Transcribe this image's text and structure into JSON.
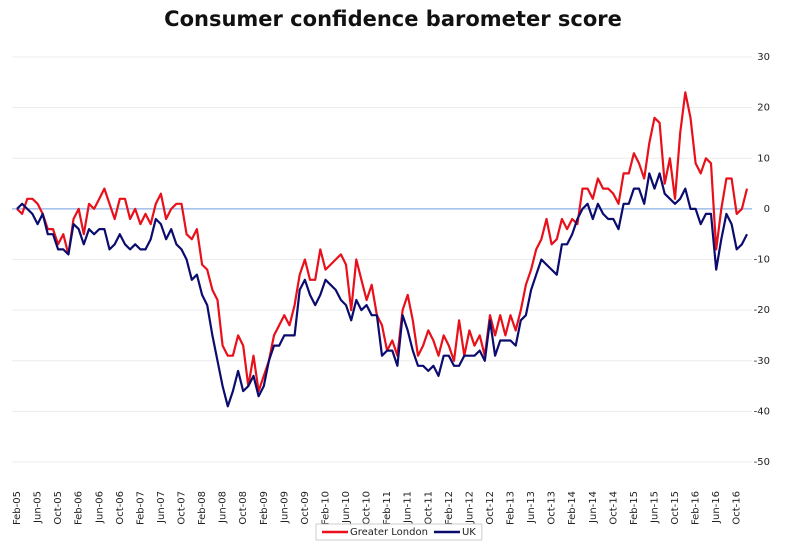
{
  "chart_data": {
    "type": "line",
    "title": "Consumer confidence barometer score",
    "categories": [
      "Feb-05",
      null,
      null,
      null,
      "Jun-05",
      null,
      null,
      null,
      "Oct-05",
      null,
      null,
      null,
      "Feb-06",
      null,
      null,
      null,
      "Jun-06",
      null,
      null,
      null,
      "Oct-06",
      null,
      null,
      null,
      "Feb-07",
      null,
      null,
      null,
      "Jun-07",
      null,
      null,
      null,
      "Oct-07",
      null,
      null,
      null,
      "Feb-08",
      null,
      null,
      null,
      "Jun-08",
      null,
      null,
      null,
      "Oct-08",
      null,
      null,
      null,
      "Feb-09",
      null,
      null,
      null,
      "Jun-09",
      null,
      null,
      null,
      "Oct-09",
      null,
      null,
      null,
      "Feb-10",
      null,
      null,
      null,
      "Jun-10",
      null,
      null,
      null,
      "Oct-10",
      null,
      null,
      null,
      "Feb-11",
      null,
      null,
      null,
      "Jun-11",
      null,
      null,
      null,
      "Oct-11",
      null,
      null,
      null,
      "Feb-12",
      null,
      null,
      null,
      "Jun-12",
      null,
      null,
      null,
      "Oct-12",
      null,
      null,
      null,
      "Feb-13",
      null,
      null,
      null,
      "Jun-13",
      null,
      null,
      null,
      "Oct-13",
      null,
      null,
      null,
      "Feb-14",
      null,
      null,
      null,
      "Jun-14",
      null,
      null,
      null,
      "Oct-14",
      null,
      null,
      null,
      "Feb-15",
      null,
      null,
      null,
      "Jun-15",
      null,
      null,
      null,
      "Oct-15",
      null,
      null,
      null,
      "Feb-16",
      null,
      null,
      null,
      "Jun-16",
      null,
      null,
      null,
      "Oct-16",
      null,
      null
    ],
    "series": [
      {
        "name": "Greater London",
        "color": "#e8101a",
        "values": [
          0,
          -1,
          2,
          2,
          1,
          -1,
          -4,
          -4,
          -7,
          -5,
          -9,
          -2,
          0,
          -5,
          1,
          0,
          2,
          4,
          1,
          -2,
          2,
          2,
          -2,
          0,
          -3,
          -1,
          -3,
          1,
          3,
          -2,
          0,
          1,
          1,
          -5,
          -6,
          -4,
          -11,
          -12,
          -16,
          -18,
          -27,
          -29,
          -29,
          -25,
          -27,
          -35,
          -29,
          -36,
          -33,
          -30,
          -25,
          -23,
          -21,
          -23,
          -19,
          -13,
          -10,
          -14,
          -14,
          -8,
          -12,
          -11,
          -10,
          -9,
          -11,
          -20,
          -10,
          -14,
          -18,
          -15,
          -21,
          -23,
          -28,
          -26,
          -29,
          -20,
          -17,
          -22,
          -29,
          -27,
          -24,
          -26,
          -29,
          -25,
          -27,
          -30,
          -22,
          -29,
          -24,
          -27,
          -25,
          -29,
          -21,
          -25,
          -21,
          -25,
          -21,
          -24,
          -20,
          -15,
          -12,
          -8,
          -6,
          -2,
          -7,
          -6,
          -2,
          -4,
          -2,
          -3,
          4,
          4,
          2,
          6,
          4,
          4,
          3,
          1,
          7,
          7,
          11,
          9,
          6,
          13,
          18,
          17,
          5,
          10,
          2,
          15,
          23,
          18,
          9,
          7,
          10,
          9,
          -8,
          0,
          6,
          6,
          -1,
          0,
          4
        ]
      },
      {
        "name": "UK",
        "color": "#0c0c6e",
        "values": [
          0,
          1,
          0,
          -1,
          -3,
          -1,
          -5,
          -5,
          -8,
          -8,
          -9,
          -3,
          -4,
          -7,
          -4,
          -5,
          -4,
          -4,
          -8,
          -7,
          -5,
          -7,
          -8,
          -7,
          -8,
          -8,
          -6,
          -2,
          -3,
          -6,
          -4,
          -7,
          -8,
          -10,
          -14,
          -13,
          -17,
          -19,
          -25,
          -30,
          -35,
          -39,
          -36,
          -32,
          -36,
          -35,
          -33,
          -37,
          -35,
          -30,
          -27,
          -27,
          -25,
          -25,
          -25,
          -16,
          -14,
          -17,
          -19,
          -17,
          -14,
          -15,
          -16,
          -18,
          -19,
          -22,
          -18,
          -20,
          -19,
          -21,
          -21,
          -29,
          -28,
          -28,
          -31,
          -21,
          -24,
          -28,
          -31,
          -31,
          -32,
          -31,
          -33,
          -29,
          -29,
          -31,
          -31,
          -29,
          -29,
          -29,
          -28,
          -30,
          -22,
          -29,
          -26,
          -26,
          -26,
          -27,
          -22,
          -21,
          -16,
          -13,
          -10,
          -11,
          -12,
          -13,
          -7,
          -7,
          -5,
          -2,
          0,
          1,
          -2,
          1,
          -1,
          -2,
          -2,
          -4,
          1,
          1,
          4,
          4,
          1,
          7,
          4,
          7,
          3,
          2,
          1,
          2,
          4,
          0,
          0,
          -3,
          -1,
          -1,
          -12,
          -6,
          -1,
          -3,
          -8,
          -7,
          -5
        ]
      }
    ],
    "ylim": [
      -50,
      30
    ],
    "yticks": [
      -50,
      -40,
      -30,
      -20,
      -10,
      0,
      10,
      20,
      30
    ],
    "grid": true,
    "legend": "bottom"
  }
}
